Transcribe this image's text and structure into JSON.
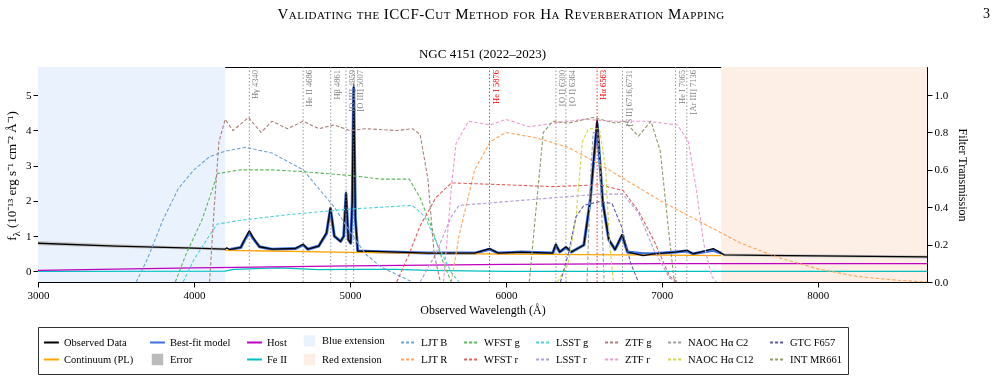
{
  "chart_data": {
    "type": "line",
    "title": "NGC 4151 (2022–2023)",
    "annotations": [
      "Validating the ICCF-Cut Method for Hα Reverberation Mapping",
      "3"
    ],
    "xlabel": "Observed Wavelength (Å)",
    "ylabel": "f$_{λ}$ (10⁻¹³ erg s⁻¹ cm⁻² Å⁻¹)",
    "y2label": "Filter Transmission",
    "xlim": [
      3000,
      8700
    ],
    "xticks": [
      3000,
      4000,
      5000,
      6000,
      7000,
      8000
    ],
    "ylim": [
      -0.3,
      5.8
    ],
    "yticks": [
      0,
      1,
      2,
      3,
      4,
      5
    ],
    "y2lim": [
      0,
      1.15
    ],
    "y2ticks": [
      {
        "value": 0,
        "label": "0.0"
      },
      {
        "value": 0.2,
        "label": "0.2"
      },
      {
        "value": 0.4,
        "label": "0.4"
      },
      {
        "value": 0.6,
        "label": "0.6"
      },
      {
        "value": 0.8,
        "label": "0.8"
      },
      {
        "value": 1,
        "label": "1.0"
      }
    ],
    "legend": "bottom",
    "series": [
      {
        "name": "Observed Data",
        "color": "#000000",
        "line_style": "solid",
        "x": [
          3000,
          3500,
          4000,
          4200,
          4210,
          4230,
          4300,
          4330,
          4355,
          4380,
          4420,
          4500,
          4650,
          4700,
          4730,
          4800,
          4850,
          4875,
          4900,
          4940,
          4960,
          4975,
          4990,
          5005,
          5015,
          5024,
          5035,
          5050,
          5200,
          5500,
          5800,
          5895,
          5950,
          6100,
          6300,
          6320,
          6345,
          6385,
          6420,
          6500,
          6540,
          6585,
          6620,
          6660,
          6700,
          6745,
          6780,
          6880,
          6950,
          7088,
          7160,
          7200,
          7330,
          7380,
          7400,
          8000,
          8700
        ],
        "values": [
          0.8,
          0.72,
          0.66,
          0.63,
          0.67,
          0.62,
          0.68,
          0.95,
          1.15,
          0.95,
          0.7,
          0.63,
          0.65,
          0.77,
          0.63,
          0.72,
          1.1,
          1.82,
          1.0,
          0.85,
          1.0,
          2.25,
          0.9,
          0.8,
          2.0,
          5.3,
          1.5,
          0.58,
          0.56,
          0.52,
          0.52,
          0.65,
          0.52,
          0.55,
          0.52,
          0.77,
          0.55,
          0.7,
          0.55,
          0.75,
          2.0,
          4.3,
          2.0,
          0.9,
          0.62,
          1.05,
          0.55,
          0.45,
          0.5,
          0.55,
          0.6,
          0.5,
          0.65,
          0.52,
          0.47,
          0.44,
          0.41
        ]
      },
      {
        "name": "Continuum (PL)",
        "color": "#ffa500",
        "line_style": "solid",
        "x": [
          4200,
          5000,
          6000,
          7000,
          7380
        ],
        "values": [
          0.6,
          0.54,
          0.49,
          0.46,
          0.45
        ]
      },
      {
        "name": "Best-fit model",
        "color": "#3a6fe0",
        "line_style": "solid",
        "x": [
          4230,
          4300,
          4330,
          4355,
          4380,
          4420,
          4500,
          4650,
          4700,
          4730,
          4800,
          4850,
          4875,
          4900,
          4940,
          4960,
          4975,
          4990,
          5005,
          5015,
          5024,
          5035,
          5050,
          5200,
          5500,
          5800,
          5895,
          5950,
          6100,
          6300,
          6320,
          6345,
          6385,
          6420,
          6500,
          6540,
          6585,
          6620,
          6660,
          6700,
          6745,
          6780,
          6880,
          6950,
          7088,
          7160,
          7200,
          7330,
          7380
        ],
        "values": [
          0.62,
          0.68,
          0.93,
          1.12,
          0.93,
          0.7,
          0.63,
          0.65,
          0.75,
          0.63,
          0.72,
          1.08,
          1.78,
          1.0,
          0.85,
          1.0,
          2.2,
          0.9,
          0.8,
          1.95,
          5.2,
          1.5,
          0.58,
          0.56,
          0.52,
          0.52,
          0.63,
          0.52,
          0.55,
          0.52,
          0.75,
          0.55,
          0.68,
          0.55,
          0.75,
          2.0,
          4.2,
          2.0,
          0.9,
          0.62,
          1.02,
          0.55,
          0.5,
          0.5,
          0.55,
          0.58,
          0.5,
          0.6,
          0.52
        ]
      },
      {
        "name": "Error",
        "color": "#bbbbbb",
        "line_style": "solid",
        "x": [
          3000,
          3500,
          4000,
          4200,
          5800,
          7380,
          7400,
          8000,
          8700
        ],
        "values": [
          null,
          null,
          null,
          null,
          null,
          null,
          null,
          null,
          null
        ],
        "lower": [
          0.74,
          0.67,
          0.62,
          0.59,
          null,
          0.48,
          0.43,
          0.4,
          0.37
        ],
        "upper": [
          0.86,
          0.77,
          0.7,
          0.67,
          null,
          0.56,
          0.51,
          0.48,
          0.45
        ]
      },
      {
        "name": "Host",
        "color": "#c000c0",
        "line_style": "solid",
        "x": [
          3000,
          4000,
          5000,
          6000,
          7000,
          8700
        ],
        "values": [
          0.03,
          0.1,
          0.16,
          0.2,
          0.22,
          0.22
        ]
      },
      {
        "name": "Fe II",
        "color": "#00bfbf",
        "line_style": "solid",
        "x": [
          3000,
          4200,
          4250,
          4550,
          4800,
          5000,
          5300,
          5500,
          6000,
          8700
        ],
        "values": [
          0.0,
          0.01,
          0.06,
          0.1,
          0.05,
          0.06,
          0.06,
          0.03,
          0.0,
          0.0
        ]
      },
      {
        "name": "LJT B",
        "axis": "y2",
        "color": "#6fa3d6",
        "line_style": "dashed",
        "x": [
          3630,
          3700,
          3800,
          3900,
          4000,
          4100,
          4200,
          4330,
          4500,
          4700,
          4900,
          5000,
          5100,
          5200,
          5300,
          5400
        ],
        "values": [
          0,
          0.12,
          0.33,
          0.5,
          0.6,
          0.67,
          0.7,
          0.72,
          0.69,
          0.6,
          0.4,
          0.27,
          0.15,
          0.08,
          0.04,
          0.0
        ]
      },
      {
        "name": "LJT R",
        "axis": "y2",
        "color": "#ffa55a",
        "line_style": "dashed",
        "x": [
          5650,
          5700,
          5800,
          5900,
          6000,
          6200,
          6400,
          6600,
          6800,
          7000,
          7250,
          7500,
          7750,
          8000,
          8250,
          8500,
          8700
        ],
        "values": [
          0,
          0.25,
          0.6,
          0.75,
          0.8,
          0.77,
          0.72,
          0.63,
          0.53,
          0.43,
          0.32,
          0.21,
          0.13,
          0.07,
          0.03,
          0.01,
          0.0
        ]
      },
      {
        "name": "WFST g",
        "axis": "y2",
        "color": "#5cb85c",
        "line_style": "dashed",
        "x": [
          3880,
          3950,
          4050,
          4120,
          4150,
          4300,
          4500,
          4700,
          5000,
          5200,
          5380,
          5450,
          5520,
          5600,
          5650
        ],
        "values": [
          0,
          0.15,
          0.33,
          0.5,
          0.58,
          0.6,
          0.6,
          0.59,
          0.57,
          0.55,
          0.55,
          0.45,
          0.3,
          0.1,
          0
        ]
      },
      {
        "name": "WFST r",
        "axis": "y2",
        "color": "#e06060",
        "line_style": "dashed",
        "x": [
          5300,
          5380,
          5450,
          5550,
          5650,
          6000,
          6300,
          6600,
          6750,
          6850,
          6950,
          7050,
          7100
        ],
        "values": [
          0,
          0.15,
          0.3,
          0.45,
          0.53,
          0.52,
          0.51,
          0.52,
          0.49,
          0.38,
          0.22,
          0.03,
          0
        ]
      },
      {
        "name": "LSST g",
        "axis": "y2",
        "color": "#4fd0dc",
        "line_style": "dashed",
        "x": [
          3930,
          4000,
          4100,
          4150,
          4300,
          4600,
          5000,
          5400,
          5480,
          5550,
          5650,
          5700
        ],
        "values": [
          0,
          0.12,
          0.25,
          0.31,
          0.33,
          0.36,
          0.39,
          0.41,
          0.35,
          0.22,
          0.05,
          0
        ]
      },
      {
        "name": "LSST r",
        "axis": "y2",
        "color": "#b39ddb",
        "line_style": "dashed",
        "x": [
          5450,
          5550,
          5650,
          5700,
          6000,
          6300,
          6600,
          6750,
          6850,
          6950,
          7050,
          7100
        ],
        "values": [
          0,
          0.15,
          0.35,
          0.41,
          0.43,
          0.45,
          0.47,
          0.47,
          0.37,
          0.17,
          0.02,
          0
        ]
      },
      {
        "name": "ZTF g",
        "axis": "y2",
        "color": "#a9807a",
        "line_style": "dashed",
        "x": [
          4100,
          4130,
          4160,
          4200,
          4250,
          4350,
          4430,
          4500,
          4600,
          4700,
          4800,
          4900,
          5000,
          5100,
          5300,
          5400,
          5450,
          5500,
          5540,
          5580
        ],
        "values": [
          0,
          0.4,
          0.75,
          0.87,
          0.81,
          0.88,
          0.8,
          0.86,
          0.82,
          0.86,
          0.82,
          0.84,
          0.81,
          0.82,
          0.81,
          0.82,
          0.79,
          0.55,
          0.15,
          0
        ]
      },
      {
        "name": "ZTF r",
        "axis": "y2",
        "color": "#ee9bd6",
        "line_style": "dashed",
        "x": [
          5600,
          5650,
          5680,
          5760,
          5900,
          6000,
          6150,
          6300,
          6500,
          6700,
          6900,
          7100,
          7170,
          7220,
          7270,
          7320,
          7350
        ],
        "values": [
          0,
          0.5,
          0.74,
          0.86,
          0.84,
          0.87,
          0.83,
          0.85,
          0.87,
          0.86,
          0.86,
          0.84,
          0.75,
          0.5,
          0.2,
          0.03,
          0
        ]
      },
      {
        "name": "NAOC Hα C2",
        "axis": "y2",
        "color": "#a0a0a0",
        "line_style": "dashed",
        "x": [
          6520,
          6545,
          6560,
          6590,
          6605,
          6630
        ],
        "values": [
          0,
          0.6,
          0.8,
          0.8,
          0.6,
          0
        ]
      },
      {
        "name": "NAOC Hα C12",
        "axis": "y2",
        "color": "#d4d44a",
        "line_style": "dashed",
        "x": [
          6330,
          6400,
          6450,
          6490,
          6530,
          6600,
          6640,
          6665,
          6690
        ],
        "values": [
          0,
          0.1,
          0.35,
          0.75,
          0.82,
          0.82,
          0.6,
          0.2,
          0
        ]
      },
      {
        "name": "GTC F657",
        "axis": "y2",
        "color": "#5a5aa8",
        "line_style": "dashed",
        "x": [
          6350,
          6400,
          6450,
          6500,
          6600,
          6680,
          6740,
          6800,
          6850
        ],
        "values": [
          0,
          0.15,
          0.35,
          0.41,
          0.43,
          0.42,
          0.3,
          0.1,
          0
        ]
      },
      {
        "name": "INT MR661",
        "axis": "y2",
        "color": "#8f9a6a",
        "line_style": "dashed",
        "x": [
          6150,
          6200,
          6240,
          6300,
          6400,
          6560,
          6700,
          6760,
          6850,
          6930,
          6990,
          7040,
          7080
        ],
        "values": [
          0,
          0.45,
          0.8,
          0.86,
          0.85,
          0.88,
          0.85,
          0.86,
          0.78,
          0.86,
          0.7,
          0.3,
          0
        ]
      }
    ],
    "bands": [
      {
        "axis": "x",
        "from": 3000,
        "to": 4200,
        "label": "Blue extension",
        "color": "#eaf3fd"
      },
      {
        "axis": "x",
        "from": 7380,
        "to": 8700,
        "label": "Red extension",
        "color": "#fdeee6"
      }
    ],
    "ref_lines": [
      {
        "axis": "x",
        "value": 4355,
        "label": "Hγ 4340",
        "color": "#808080",
        "line_style": "dotted"
      },
      {
        "axis": "x",
        "value": 4700,
        "label": "He II 4686",
        "color": "#808080",
        "line_style": "dotted"
      },
      {
        "axis": "x",
        "value": 4877,
        "label": "Hβ 4861",
        "color": "#808080",
        "line_style": "dotted"
      },
      {
        "axis": "x",
        "value": 4975,
        "label": "[O III] 4959",
        "color": "#808080",
        "line_style": "dotted"
      },
      {
        "axis": "x",
        "value": 5024,
        "label": "[O III] 5007",
        "color": "#808080",
        "line_style": "dotted"
      },
      {
        "axis": "x",
        "value": 5895,
        "label": "He I 5876",
        "color": "#ff0000",
        "line_style": "dotted"
      },
      {
        "axis": "x",
        "value": 6321,
        "label": "[O I] 6300",
        "color": "#808080",
        "line_style": "dotted"
      },
      {
        "axis": "x",
        "value": 6385,
        "label": "[O I] 6364",
        "color": "#808080",
        "line_style": "dotted"
      },
      {
        "axis": "x",
        "value": 6585,
        "label": "Hα 6563",
        "color": "#ff0000",
        "line_style": "dotted"
      },
      {
        "axis": "x",
        "value": 6748,
        "label": "[S II] 6716,6731",
        "color": "#808080",
        "line_style": "dotted"
      },
      {
        "axis": "x",
        "value": 7088,
        "label": "He I 7065",
        "color": "#808080",
        "line_style": "dotted"
      },
      {
        "axis": "x",
        "value": 7160,
        "label": "[Ar III] 7136",
        "color": "#808080",
        "line_style": "dotted"
      }
    ]
  }
}
